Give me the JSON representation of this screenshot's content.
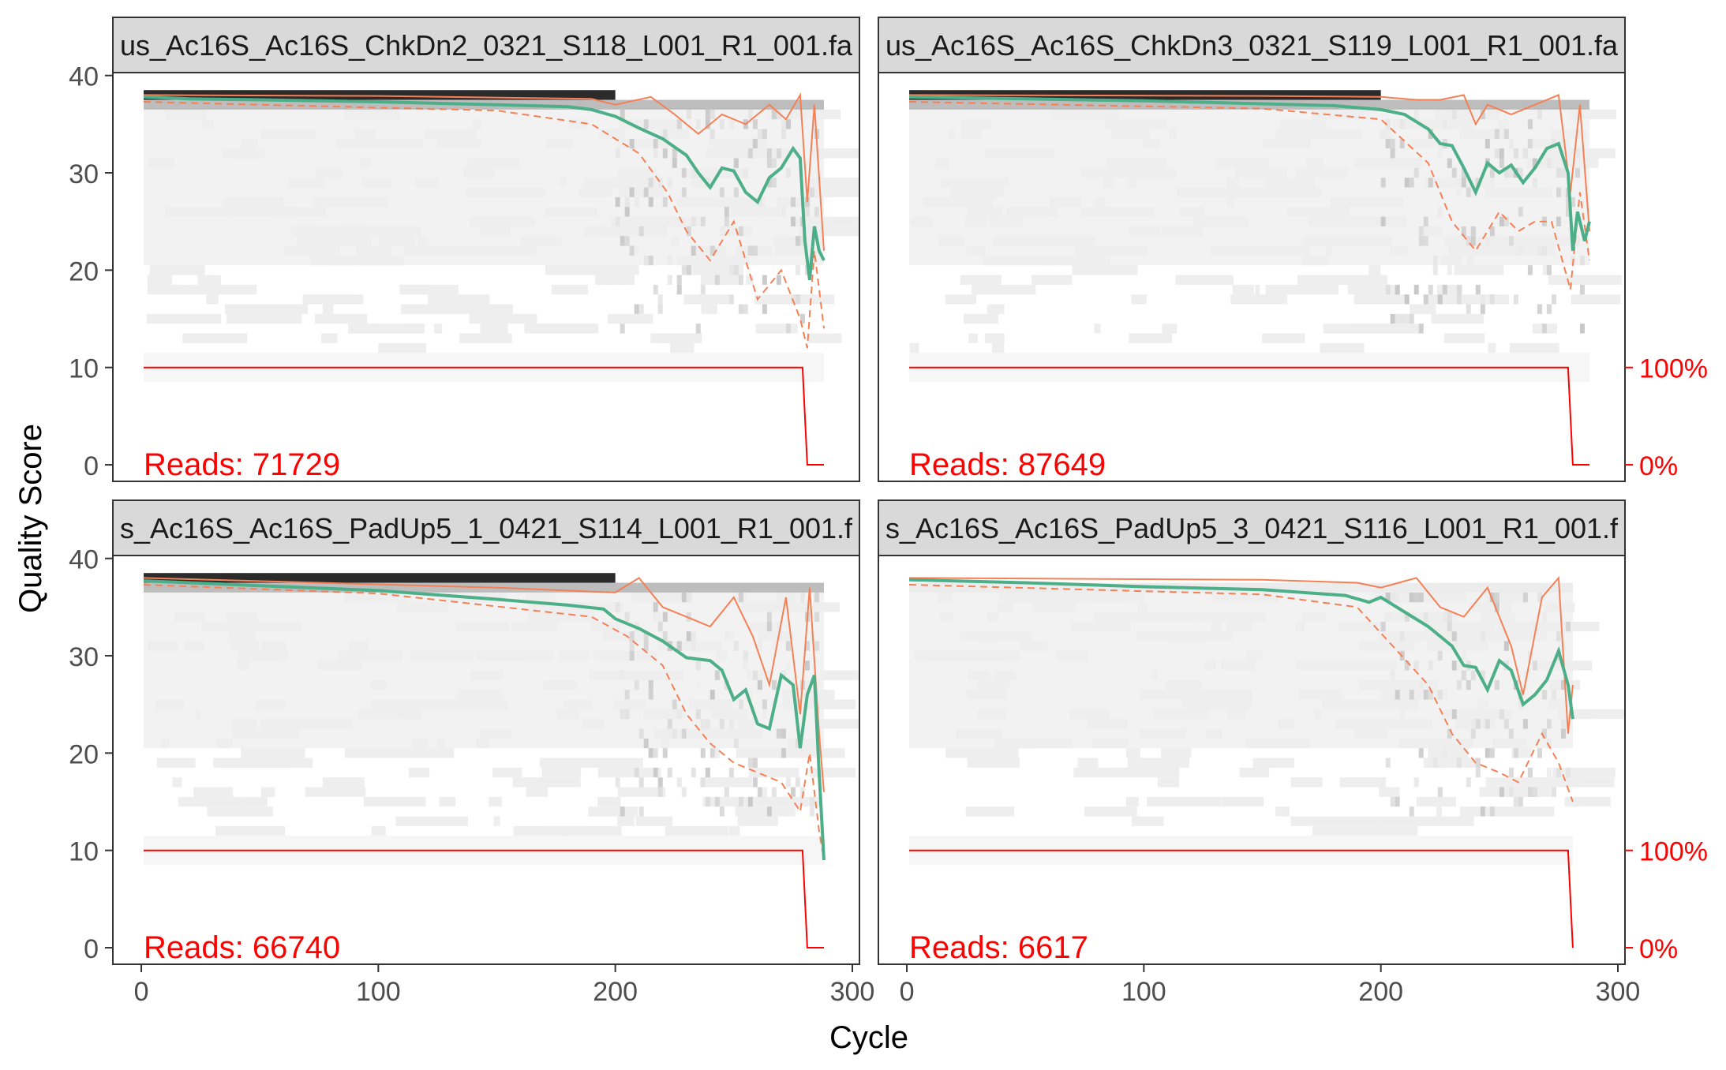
{
  "chart_data": {
    "type": "line",
    "ylabel": "Quality Score",
    "xlabel": "Cycle",
    "x_ticks": [
      0,
      100,
      200,
      300
    ],
    "y_ticks": [
      0,
      10,
      20,
      30,
      40
    ],
    "xlim": [
      -12,
      303
    ],
    "ylim": [
      -1.7,
      40.3
    ],
    "right_axis": {
      "ticks": [
        "100%",
        "0%"
      ],
      "tick_values": [
        10,
        0
      ],
      "color": "#ff0000"
    },
    "colors": {
      "mean": "#4daf8a",
      "quartiles": "#f58055",
      "cumulative": "#ff0000",
      "reads_label": "#ff0000",
      "heatmap_dark": "#2b2b2b",
      "heatmap_light": "#f2f2f2",
      "strip_fill": "#d9d9d9",
      "panel_border": "#333333"
    },
    "panels": [
      {
        "title": "us_Ac16S_Ac16S_ChkDn2_0321_S118_L001_R1_001.fa",
        "reads_text": "Reads:  71729",
        "reads": 71729,
        "mean_quality": [
          [
            1,
            37.8
          ],
          [
            20,
            37.6
          ],
          [
            50,
            37.5
          ],
          [
            100,
            37.3
          ],
          [
            150,
            37.0
          ],
          [
            180,
            36.8
          ],
          [
            190,
            36.5
          ],
          [
            200,
            35.8
          ],
          [
            210,
            34.6
          ],
          [
            220,
            33.5
          ],
          [
            230,
            31.8
          ],
          [
            235,
            30.0
          ],
          [
            240,
            28.5
          ],
          [
            245,
            30.5
          ],
          [
            250,
            30.2
          ],
          [
            255,
            28.0
          ],
          [
            260,
            27.0
          ],
          [
            265,
            29.5
          ],
          [
            270,
            30.5
          ],
          [
            275,
            32.5
          ],
          [
            278,
            31.5
          ],
          [
            280,
            23.0
          ],
          [
            282,
            19.0
          ],
          [
            284,
            24.5
          ],
          [
            286,
            22.0
          ],
          [
            288,
            21.0
          ]
        ],
        "quartile_upper": [
          [
            1,
            38.0
          ],
          [
            100,
            37.9
          ],
          [
            190,
            37.6
          ],
          [
            200,
            37.0
          ],
          [
            215,
            37.8
          ],
          [
            225,
            36.0
          ],
          [
            235,
            34.0
          ],
          [
            245,
            36.0
          ],
          [
            255,
            35.0
          ],
          [
            265,
            37.0
          ],
          [
            272,
            35.5
          ],
          [
            278,
            38.0
          ],
          [
            281,
            27.0
          ],
          [
            284,
            37.0
          ],
          [
            288,
            22.0
          ]
        ],
        "quartile_lower": [
          [
            1,
            37.3
          ],
          [
            150,
            36.4
          ],
          [
            190,
            35.0
          ],
          [
            210,
            32.0
          ],
          [
            222,
            28.0
          ],
          [
            230,
            24.0
          ],
          [
            240,
            21.0
          ],
          [
            250,
            25.0
          ],
          [
            260,
            17.0
          ],
          [
            270,
            20.0
          ],
          [
            278,
            15.0
          ],
          [
            281,
            12.0
          ],
          [
            284,
            22.0
          ],
          [
            288,
            14.0
          ]
        ],
        "cumulative": [
          [
            1,
            10
          ],
          [
            279,
            10
          ],
          [
            281,
            0
          ],
          [
            288,
            0
          ]
        ]
      },
      {
        "title": "us_Ac16S_Ac16S_ChkDn3_0321_S119_L001_R1_001.fa",
        "reads_text": "Reads:  87649",
        "reads": 87649,
        "mean_quality": [
          [
            1,
            37.8
          ],
          [
            50,
            37.6
          ],
          [
            100,
            37.4
          ],
          [
            150,
            37.1
          ],
          [
            180,
            36.9
          ],
          [
            200,
            36.5
          ],
          [
            210,
            36.0
          ],
          [
            220,
            34.5
          ],
          [
            225,
            33.0
          ],
          [
            230,
            32.8
          ],
          [
            235,
            30.5
          ],
          [
            240,
            28.0
          ],
          [
            245,
            31.0
          ],
          [
            250,
            30.0
          ],
          [
            255,
            30.8
          ],
          [
            260,
            29.0
          ],
          [
            265,
            30.5
          ],
          [
            270,
            32.5
          ],
          [
            275,
            33.0
          ],
          [
            279,
            30.0
          ],
          [
            281,
            22.0
          ],
          [
            283,
            26.0
          ],
          [
            286,
            23.0
          ],
          [
            288,
            25.0
          ]
        ],
        "quartile_upper": [
          [
            1,
            38.0
          ],
          [
            150,
            37.9
          ],
          [
            200,
            37.8
          ],
          [
            215,
            37.5
          ],
          [
            225,
            37.5
          ],
          [
            235,
            38.0
          ],
          [
            240,
            35.0
          ],
          [
            245,
            37.0
          ],
          [
            255,
            36.0
          ],
          [
            265,
            37.0
          ],
          [
            275,
            38.0
          ],
          [
            280,
            28.0
          ],
          [
            284,
            37.0
          ],
          [
            288,
            24.0
          ]
        ],
        "quartile_lower": [
          [
            1,
            37.3
          ],
          [
            150,
            36.6
          ],
          [
            200,
            35.5
          ],
          [
            220,
            31.0
          ],
          [
            230,
            25.0
          ],
          [
            240,
            22.0
          ],
          [
            250,
            26.0
          ],
          [
            258,
            24.0
          ],
          [
            265,
            25.0
          ],
          [
            272,
            25.0
          ],
          [
            280,
            18.0
          ],
          [
            284,
            28.0
          ],
          [
            288,
            21.0
          ]
        ],
        "cumulative": [
          [
            1,
            10
          ],
          [
            279,
            10
          ],
          [
            281,
            0
          ],
          [
            288,
            0
          ]
        ]
      },
      {
        "title": "s_Ac16S_Ac16S_PadUp5_1_0421_S114_L001_R1_001.f",
        "reads_text": "Reads:  66740",
        "reads": 66740,
        "mean_quality": [
          [
            1,
            37.7
          ],
          [
            50,
            37.2
          ],
          [
            100,
            36.7
          ],
          [
            150,
            35.8
          ],
          [
            180,
            35.2
          ],
          [
            195,
            34.8
          ],
          [
            200,
            33.8
          ],
          [
            210,
            32.8
          ],
          [
            220,
            31.5
          ],
          [
            230,
            29.8
          ],
          [
            240,
            29.5
          ],
          [
            245,
            28.5
          ],
          [
            250,
            25.5
          ],
          [
            255,
            26.5
          ],
          [
            260,
            23.0
          ],
          [
            265,
            22.5
          ],
          [
            270,
            28.0
          ],
          [
            275,
            27.0
          ],
          [
            278,
            20.5
          ],
          [
            281,
            26.0
          ],
          [
            284,
            28.0
          ],
          [
            286,
            18.0
          ],
          [
            288,
            9.0
          ]
        ],
        "quartile_upper": [
          [
            1,
            38.0
          ],
          [
            150,
            37.0
          ],
          [
            200,
            36.5
          ],
          [
            210,
            38.0
          ],
          [
            220,
            35.0
          ],
          [
            230,
            34.0
          ],
          [
            240,
            33.0
          ],
          [
            250,
            36.0
          ],
          [
            258,
            32.0
          ],
          [
            265,
            27.0
          ],
          [
            272,
            36.0
          ],
          [
            278,
            24.0
          ],
          [
            282,
            37.0
          ],
          [
            286,
            22.0
          ],
          [
            288,
            16.0
          ]
        ],
        "quartile_lower": [
          [
            1,
            37.3
          ],
          [
            100,
            36.4
          ],
          [
            190,
            34.0
          ],
          [
            205,
            32.0
          ],
          [
            220,
            29.0
          ],
          [
            230,
            24.0
          ],
          [
            240,
            21.0
          ],
          [
            250,
            19.0
          ],
          [
            260,
            18.0
          ],
          [
            270,
            17.0
          ],
          [
            278,
            14.0
          ],
          [
            282,
            20.0
          ],
          [
            286,
            12.0
          ],
          [
            288,
            9.0
          ]
        ],
        "cumulative": [
          [
            1,
            10
          ],
          [
            279,
            10
          ],
          [
            281,
            0
          ],
          [
            288,
            0
          ]
        ]
      },
      {
        "title": "s_Ac16S_Ac16S_PadUp5_3_0421_S116_L001_R1_001.f",
        "reads_text": "Reads:  6617",
        "reads": 6617,
        "mean_quality": [
          [
            1,
            37.8
          ],
          [
            50,
            37.5
          ],
          [
            100,
            37.1
          ],
          [
            150,
            36.8
          ],
          [
            185,
            36.2
          ],
          [
            195,
            35.5
          ],
          [
            200,
            36.0
          ],
          [
            210,
            34.5
          ],
          [
            220,
            33.0
          ],
          [
            230,
            31.0
          ],
          [
            235,
            29.0
          ],
          [
            240,
            28.8
          ],
          [
            245,
            26.5
          ],
          [
            250,
            29.5
          ],
          [
            255,
            28.5
          ],
          [
            260,
            25.0
          ],
          [
            265,
            26.0
          ],
          [
            270,
            27.5
          ],
          [
            275,
            30.5
          ],
          [
            279,
            27.0
          ],
          [
            281,
            23.5
          ]
        ],
        "quartile_upper": [
          [
            1,
            38.0
          ],
          [
            150,
            37.8
          ],
          [
            190,
            37.5
          ],
          [
            200,
            37.0
          ],
          [
            215,
            38.0
          ],
          [
            225,
            35.0
          ],
          [
            235,
            34.0
          ],
          [
            245,
            37.0
          ],
          [
            255,
            31.0
          ],
          [
            260,
            26.0
          ],
          [
            268,
            36.0
          ],
          [
            275,
            38.0
          ],
          [
            279,
            22.0
          ],
          [
            281,
            27.0
          ]
        ],
        "quartile_lower": [
          [
            1,
            37.3
          ],
          [
            150,
            36.3
          ],
          [
            190,
            35.0
          ],
          [
            205,
            31.0
          ],
          [
            220,
            27.0
          ],
          [
            230,
            22.0
          ],
          [
            240,
            19.0
          ],
          [
            250,
            18.0
          ],
          [
            258,
            17.0
          ],
          [
            268,
            22.0
          ],
          [
            275,
            19.0
          ],
          [
            281,
            15.0
          ]
        ],
        "cumulative": [
          [
            1,
            10
          ],
          [
            279,
            10
          ],
          [
            281,
            0
          ]
        ]
      }
    ]
  }
}
